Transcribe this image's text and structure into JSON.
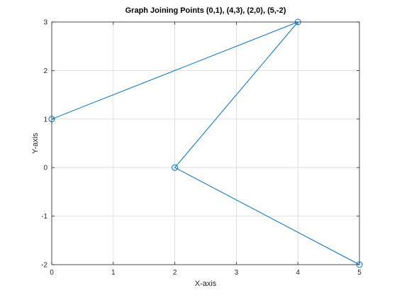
{
  "chart_data": {
    "type": "line",
    "title": "Graph Joining Points (0,1), (4,3), (2,0), (5,-2)",
    "xlabel": "X-axis",
    "ylabel": "Y-axis",
    "xlim": [
      0,
      5
    ],
    "ylim": [
      -2,
      3
    ],
    "xticks": [
      "0",
      "1",
      "2",
      "3",
      "4",
      "5"
    ],
    "yticks": [
      "-2",
      "-1",
      "0",
      "1",
      "2",
      "3"
    ],
    "grid": true,
    "series": [
      {
        "color": "#0072bd",
        "marker": "circle",
        "x": [
          0,
          4,
          2,
          5
        ],
        "y": [
          1,
          3,
          0,
          -2
        ]
      }
    ]
  }
}
